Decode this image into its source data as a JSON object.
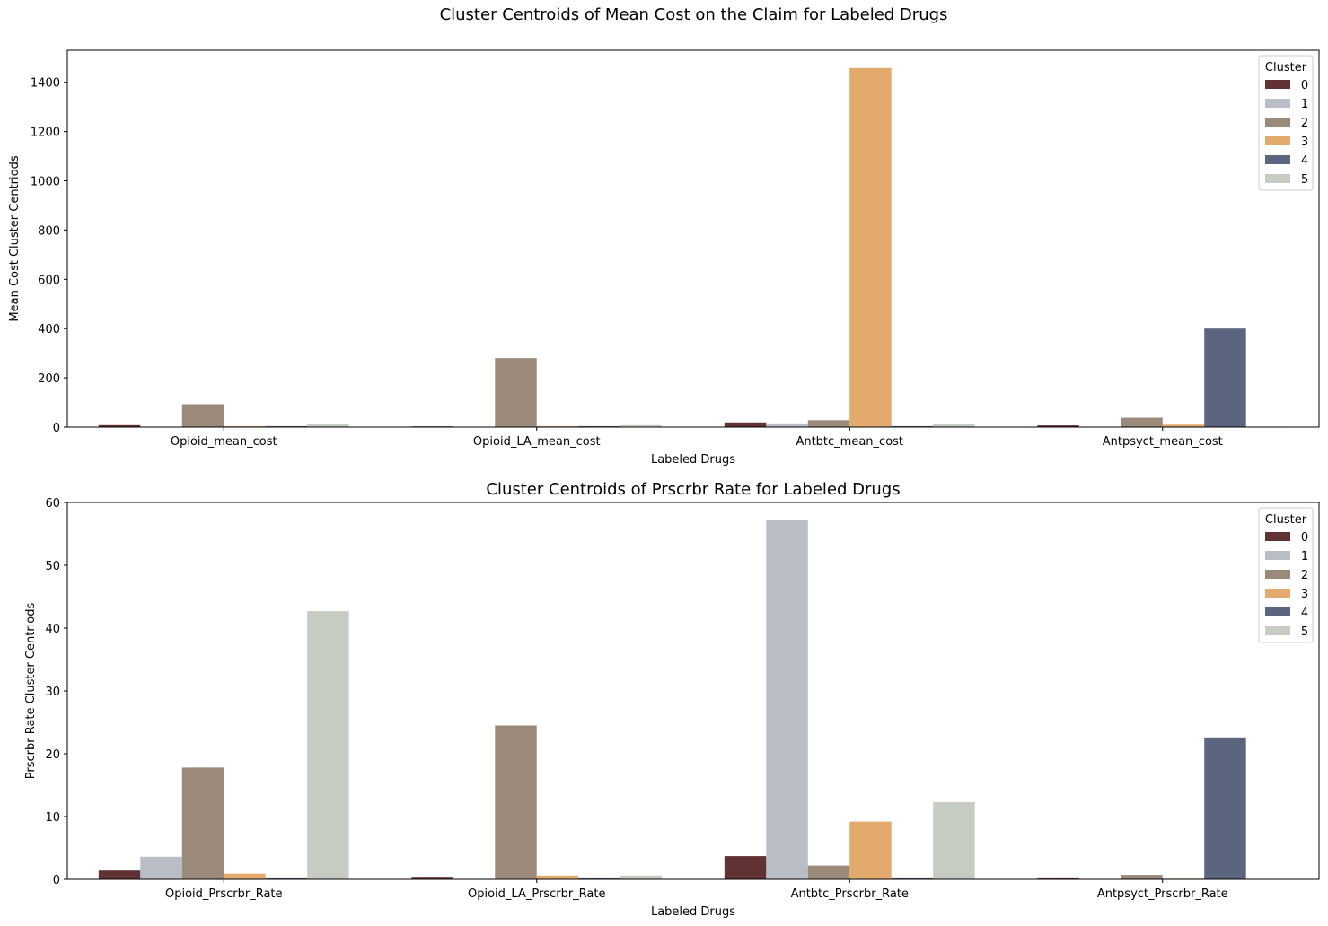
{
  "figure": {
    "suptitle": "Cluster Centroids of  Mean Cost on the Claim for Labeled Drugs"
  },
  "chart_data": [
    {
      "type": "bar",
      "title": "",
      "xlabel": "Labeled Drugs",
      "ylabel": "Mean Cost Cluster Centriods",
      "categories": [
        "Opioid_mean_cost",
        "Opioid_LA_mean_cost",
        "Antbtc_mean_cost",
        "Antpsyct_mean_cost"
      ],
      "ylim": [
        0,
        1530
      ],
      "yticks": [
        0,
        200,
        400,
        600,
        800,
        1000,
        1200,
        1400
      ],
      "legend": {
        "title": "Cluster",
        "position": "top-right"
      },
      "series": [
        {
          "name": "0",
          "color": "#603234",
          "values": [
            8,
            3,
            19,
            7
          ]
        },
        {
          "name": "1",
          "color": "#b9bec6",
          "values": [
            2,
            1,
            15,
            1
          ]
        },
        {
          "name": "2",
          "color": "#9b897a",
          "values": [
            93,
            280,
            28,
            38
          ]
        },
        {
          "name": "3",
          "color": "#e3aa6e",
          "values": [
            4,
            4,
            1458,
            10
          ]
        },
        {
          "name": "4",
          "color": "#5b657d",
          "values": [
            4,
            4,
            4,
            400
          ]
        },
        {
          "name": "5",
          "color": "#c7ccc2",
          "values": [
            12,
            8,
            12,
            2
          ]
        }
      ]
    },
    {
      "type": "bar",
      "title": "Cluster Centroids of Prscrbr Rate for Labeled Drugs",
      "xlabel": "Labeled Drugs",
      "ylabel": "Prscrbr Rate Cluster Centriods",
      "categories": [
        "Opioid_Prscrbr_Rate",
        "Opioid_LA_Prscrbr_Rate",
        "Antbtc_Prscrbr_Rate",
        "Antpsyct_Prscrbr_Rate"
      ],
      "ylim": [
        0,
        60
      ],
      "yticks": [
        0,
        10,
        20,
        30,
        40,
        50,
        60
      ],
      "legend": {
        "title": "Cluster",
        "position": "top-right"
      },
      "series": [
        {
          "name": "0",
          "color": "#603234",
          "values": [
            1.4,
            0.4,
            3.7,
            0.3
          ]
        },
        {
          "name": "1",
          "color": "#b9bec6",
          "values": [
            3.6,
            0.05,
            57.2,
            0.05
          ]
        },
        {
          "name": "2",
          "color": "#9b897a",
          "values": [
            17.8,
            24.5,
            2.2,
            0.7
          ]
        },
        {
          "name": "3",
          "color": "#e3aa6e",
          "values": [
            0.9,
            0.6,
            9.2,
            0.1
          ]
        },
        {
          "name": "4",
          "color": "#5b657d",
          "values": [
            0.3,
            0.3,
            0.3,
            22.6
          ]
        },
        {
          "name": "5",
          "color": "#c7ccc2",
          "values": [
            42.7,
            0.6,
            12.3,
            0.05
          ]
        }
      ]
    }
  ]
}
